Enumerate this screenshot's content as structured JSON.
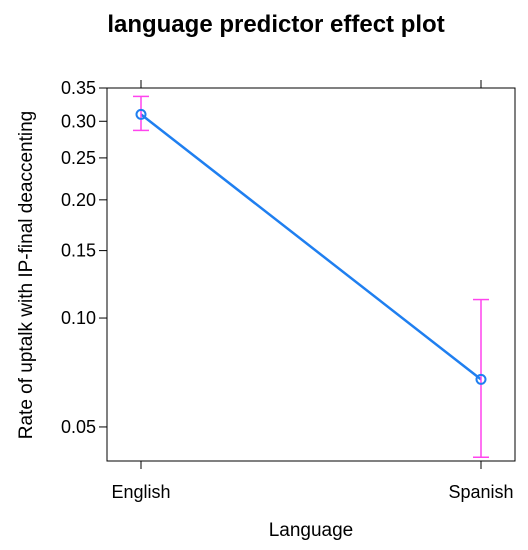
{
  "chart_data": {
    "type": "line",
    "title": "language predictor effect plot",
    "xlabel": "Language",
    "ylabel": "Rate of uptalk with IP-final deaccenting",
    "categories": [
      "English",
      "Spanish"
    ],
    "series": [
      {
        "values": [
          0.31,
          0.068
        ],
        "lower": [
          0.287,
          0.041
        ],
        "upper": [
          0.337,
          0.112
        ]
      }
    ],
    "y_ticks": [
      0.05,
      0.1,
      0.15,
      0.2,
      0.25,
      0.3,
      0.35
    ],
    "y_tick_labels": [
      "0.05",
      "0.10",
      "0.15",
      "0.20",
      "0.25",
      "0.30",
      "0.35"
    ],
    "y_scale": "logit",
    "ylim": [
      0.04,
      0.35
    ],
    "grid": false,
    "colors": {
      "line": "#1f7ff0",
      "error_bar": "#ff44ee",
      "frame": "#000000"
    }
  }
}
